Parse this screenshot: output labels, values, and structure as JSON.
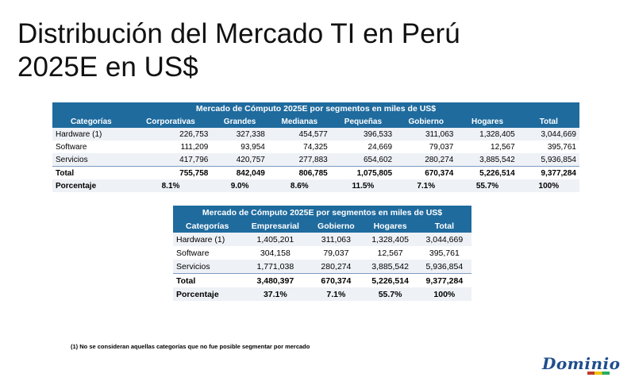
{
  "title_line1": "Distribución del Mercado TI en Perú",
  "title_line2": "2025E en US$",
  "table1": {
    "caption": "Mercado de Cómputo 2025E por segmentos en miles de US$",
    "headers": [
      "Categorías",
      "Corporativas",
      "Grandes",
      "Medianas",
      "Pequeñas",
      "Gobierno",
      "Hogares",
      "Total"
    ],
    "rows": [
      [
        "Hardware (1)",
        "226,753",
        "327,338",
        "454,577",
        "396,533",
        "311,063",
        "1,328,405",
        "3,044,669"
      ],
      [
        "Software",
        "111,209",
        "93,954",
        "74,325",
        "24,669",
        "79,037",
        "12,567",
        "395,761"
      ],
      [
        "Servicios",
        "417,796",
        "420,757",
        "277,883",
        "654,602",
        "280,274",
        "3,885,542",
        "5,936,854"
      ]
    ],
    "total": [
      "Total",
      "755,758",
      "842,049",
      "806,785",
      "1,075,805",
      "670,374",
      "5,226,514",
      "9,377,284"
    ],
    "percent": [
      "Porcentaje",
      "8.1%",
      "9.0%",
      "8.6%",
      "11.5%",
      "7.1%",
      "55.7%",
      "100%"
    ]
  },
  "table2": {
    "caption": "Mercado de Cómputo 2025E por segmentos en miles de US$",
    "headers": [
      "Categorías",
      "Empresarial",
      "Gobierno",
      "Hogares",
      "Total"
    ],
    "rows": [
      [
        "Hardware (1)",
        "1,405,201",
        "311,063",
        "1,328,405",
        "3,044,669"
      ],
      [
        "Software",
        "304,158",
        "79,037",
        "12,567",
        "395,761"
      ],
      [
        "Servicios",
        "1,771,038",
        "280,274",
        "3,885,542",
        "5,936,854"
      ]
    ],
    "total": [
      "Total",
      "3,480,397",
      "670,374",
      "5,226,514",
      "9,377,284"
    ],
    "percent": [
      "Porcentaje",
      "37.1%",
      "7.1%",
      "55.7%",
      "100%"
    ]
  },
  "footnote": "(1) No se consideran aquellas categorías que no fue posible segmentar por mercado",
  "logo_text": "Dominio",
  "colors": {
    "header_bg": "#1f6b9e",
    "row_alt_bg": "#eef1f6",
    "logo": "#1f4e8c"
  }
}
